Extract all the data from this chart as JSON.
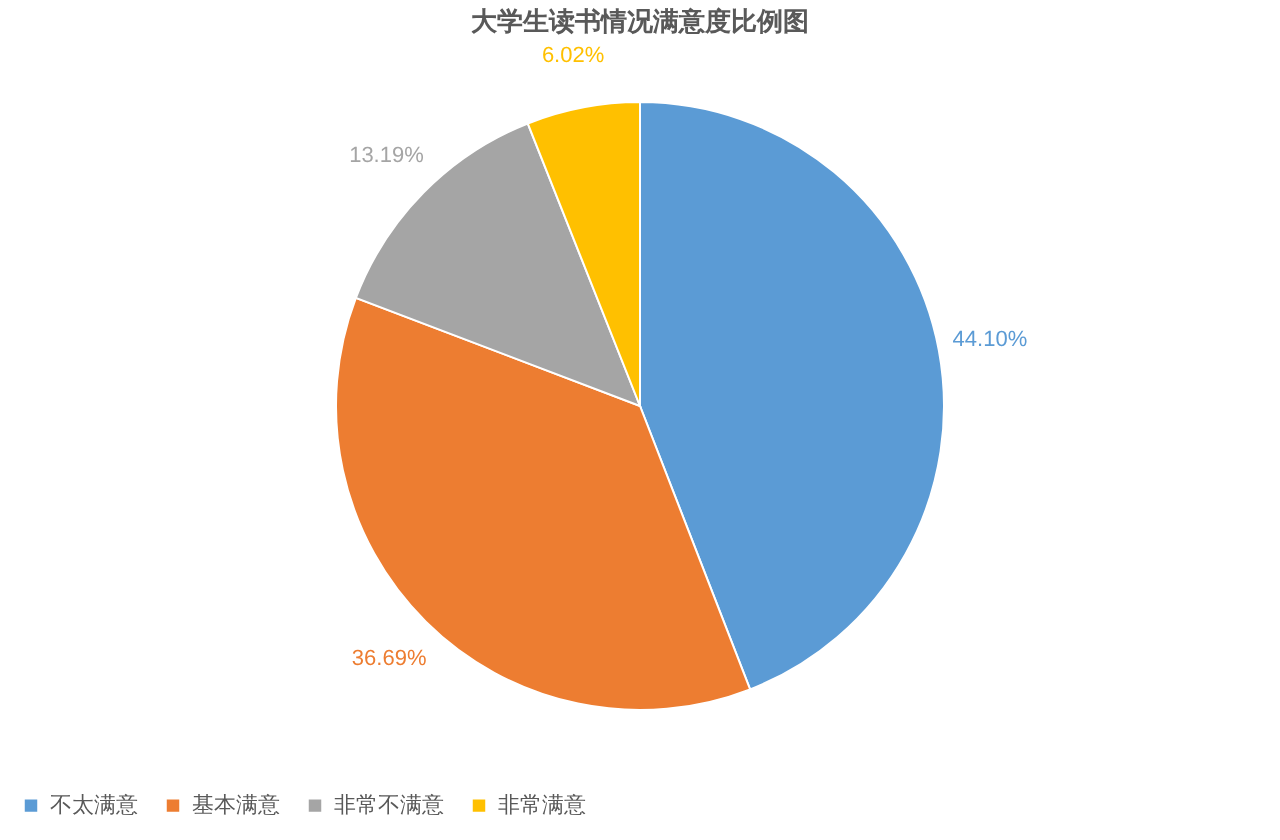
{
  "chart_data": {
    "type": "pie",
    "title": "大学生读书情况满意度比例图",
    "categories": [
      "不太满意",
      "基本满意",
      "非常不满意",
      "非常满意"
    ],
    "values": [
      44.1,
      36.69,
      13.19,
      6.02
    ],
    "colors": [
      "#5b9bd5",
      "#ed7d31",
      "#a5a5a5",
      "#ffc000"
    ],
    "value_labels": [
      "44.10%",
      "36.69%",
      "13.19%",
      "6.02%"
    ],
    "legend": "bottom"
  }
}
